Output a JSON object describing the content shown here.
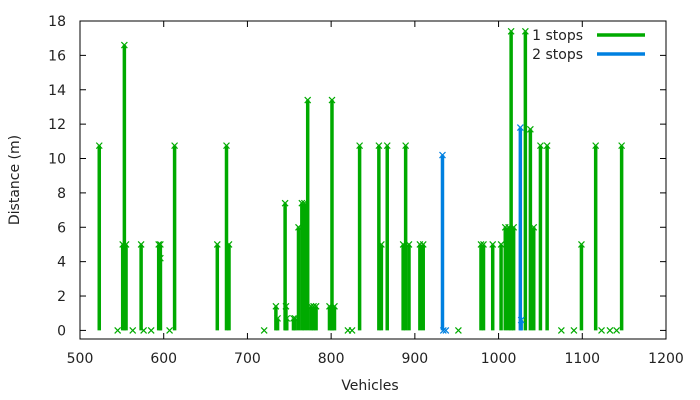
{
  "chart_data": {
    "type": "impulse",
    "xlabel": "Vehicles",
    "ylabel": "Distance (m)",
    "xlim": [
      500,
      1200
    ],
    "ylim": [
      -0.5,
      18
    ],
    "xticks": [
      500,
      600,
      700,
      800,
      900,
      1000,
      1100,
      1200
    ],
    "yticks": [
      0,
      2,
      4,
      6,
      8,
      10,
      12,
      14,
      16,
      18
    ],
    "legend_position": "top-right",
    "series": [
      {
        "name": "1 stops",
        "color": "#00aa00",
        "points": [
          [
            523,
            10.75
          ],
          [
            545,
            0
          ],
          [
            551,
            5
          ],
          [
            553,
            16.6
          ],
          [
            555,
            5
          ],
          [
            563,
            0
          ],
          [
            573,
            5
          ],
          [
            576,
            0
          ],
          [
            585,
            0
          ],
          [
            594,
            5
          ],
          [
            596,
            4.2
          ],
          [
            596,
            5
          ],
          [
            607,
            0
          ],
          [
            613,
            10.75
          ],
          [
            664,
            5
          ],
          [
            675,
            10.75
          ],
          [
            678,
            5
          ],
          [
            720,
            0
          ],
          [
            734,
            1.4
          ],
          [
            736,
            0.7
          ],
          [
            745,
            7.4
          ],
          [
            746,
            1.4
          ],
          [
            747,
            0.7
          ],
          [
            755,
            0.7
          ],
          [
            757,
            0.7
          ],
          [
            761,
            6
          ],
          [
            765,
            7.4
          ],
          [
            768,
            7.4
          ],
          [
            772,
            13.4
          ],
          [
            776,
            1.4
          ],
          [
            779,
            1.4
          ],
          [
            782,
            1.4
          ],
          [
            798,
            1.4
          ],
          [
            801,
            0.7
          ],
          [
            801,
            13.4
          ],
          [
            804,
            1.4
          ],
          [
            820,
            0
          ],
          [
            825,
            0
          ],
          [
            834,
            10.75
          ],
          [
            857,
            10.75
          ],
          [
            860,
            5
          ],
          [
            867,
            10.75
          ],
          [
            886,
            5
          ],
          [
            889,
            10.75
          ],
          [
            893,
            5
          ],
          [
            906,
            5
          ],
          [
            910,
            5
          ],
          [
            952,
            0
          ],
          [
            979,
            5
          ],
          [
            982,
            5
          ],
          [
            993,
            5
          ],
          [
            1003,
            5
          ],
          [
            1008,
            6
          ],
          [
            1012,
            6
          ],
          [
            1015,
            17.4
          ],
          [
            1018,
            6
          ],
          [
            1032,
            17.4
          ],
          [
            1038,
            11.7
          ],
          [
            1042,
            6
          ],
          [
            1050,
            10.75
          ],
          [
            1058,
            10.75
          ],
          [
            1075,
            0
          ],
          [
            1090,
            0
          ],
          [
            1099,
            5
          ],
          [
            1116,
            10.75
          ],
          [
            1123,
            0
          ],
          [
            1133,
            0
          ],
          [
            1141,
            0
          ],
          [
            1147,
            10.75
          ]
        ]
      },
      {
        "name": "2 stops",
        "color": "#0080e0",
        "points": [
          [
            933,
            10.2
          ],
          [
            934,
            0
          ],
          [
            937,
            0
          ],
          [
            1026,
            11.8
          ],
          [
            1027,
            0.6
          ]
        ]
      }
    ]
  }
}
